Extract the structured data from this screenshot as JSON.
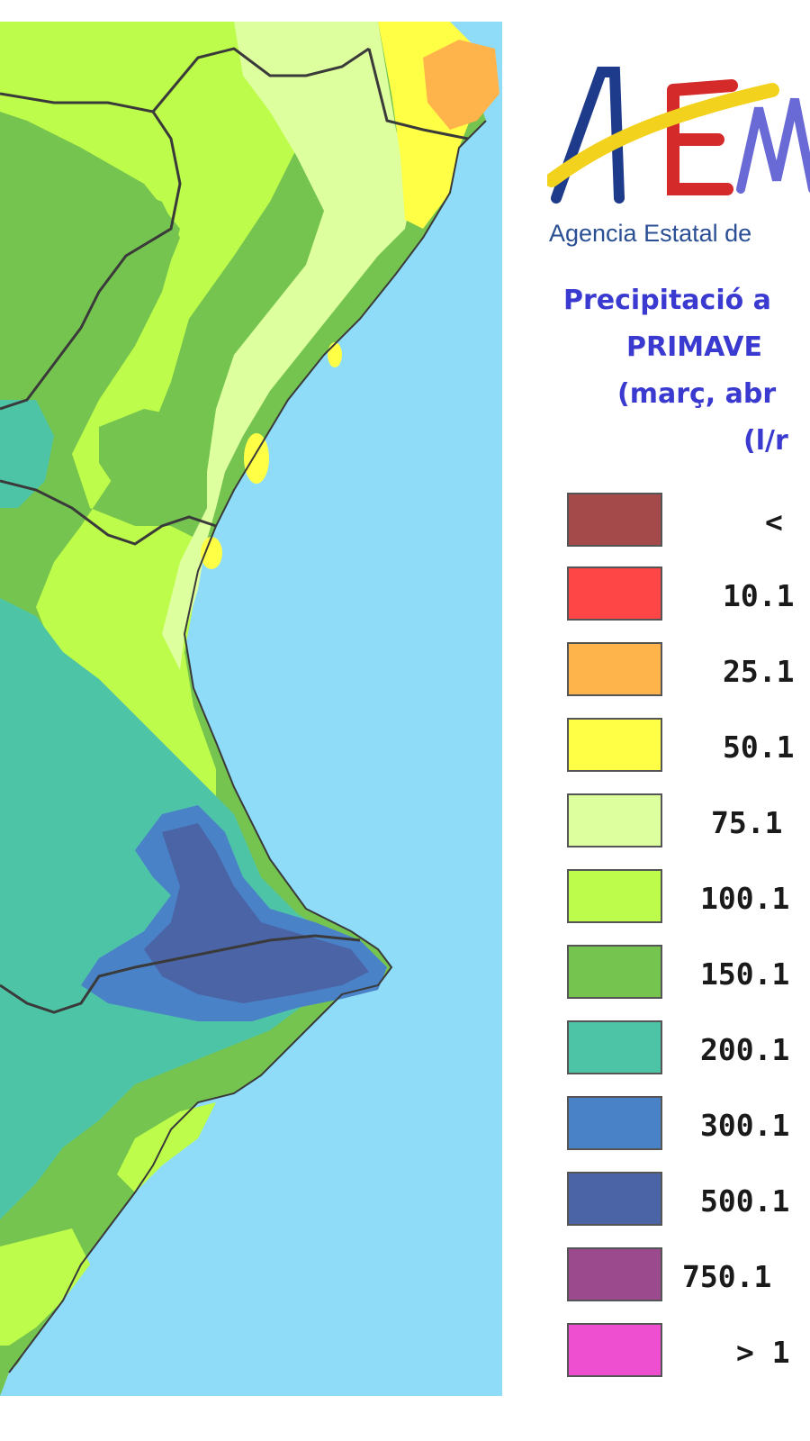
{
  "header": {
    "agency_text": "Agencia Estatal de",
    "logo_letters": "AEM"
  },
  "title": {
    "line1": "Precipitació a",
    "line2": "PRIMAVE",
    "line3": "(març, abr",
    "line4": "(l/r"
  },
  "legend": {
    "items": [
      {
        "label": "<",
        "color": "#a54a4a"
      },
      {
        "label": "10.1",
        "color": "#ff4646"
      },
      {
        "label": "25.1",
        "color": "#ffb44b"
      },
      {
        "label": "50.1",
        "color": "#ffff46"
      },
      {
        "label": "75.1",
        "color": "#deff9e"
      },
      {
        "label": "100.1",
        "color": "#bdfc4a"
      },
      {
        "label": "150.1",
        "color": "#75c450"
      },
      {
        "label": "200.1",
        "color": "#4ec4a6"
      },
      {
        "label": "300.1",
        "color": "#4a82c8"
      },
      {
        "label": "500.1",
        "color": "#4a64a6"
      },
      {
        "label": "750.1",
        "color": "#9c4a8e"
      },
      {
        "label": "> 1",
        "color": "#ee4ed0"
      }
    ]
  },
  "map_colors": {
    "sea": "#8fdcf8",
    "zone_75": "#deff9e",
    "zone_100": "#bdfc4a",
    "zone_150": "#75c450",
    "zone_200": "#4ec4a6",
    "zone_300": "#4a82c8",
    "zone_500": "#4a64a6",
    "zone_50": "#ffff46",
    "zone_25": "#ffb44b",
    "border": "#3a3a3a"
  }
}
